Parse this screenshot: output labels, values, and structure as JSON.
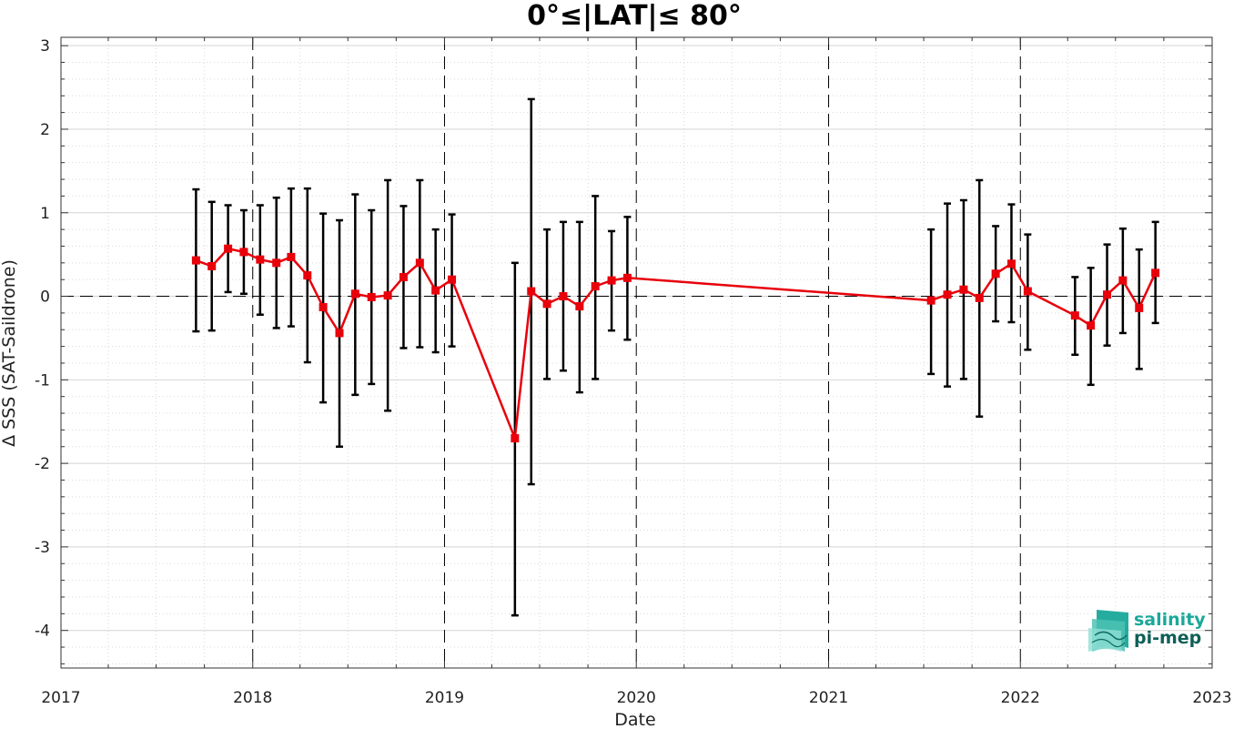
{
  "chart_data": {
    "type": "line",
    "title": "0°≤|LAT|≤ 80°",
    "xlabel": "Date",
    "ylabel": "Δ SSS (SAT-Saildrone)",
    "xlim": [
      "2017-01-01",
      "2023-01-01"
    ],
    "ylim": [
      -4.45,
      3.1
    ],
    "x_tick_labels": [
      "2017",
      "2018",
      "2019",
      "2020",
      "2021",
      "2022",
      "2023"
    ],
    "y_tick_labels": [
      "-4",
      "-3",
      "-2",
      "-1",
      "0",
      "1",
      "2",
      "3"
    ],
    "grid": true,
    "reference_line_y": 0,
    "year_boundary_lines": [
      "2018-01-01",
      "2019-01-01",
      "2020-01-01",
      "2021-01-01",
      "2022-01-01"
    ],
    "colors": {
      "line": "#e8000b",
      "errorbar": "#000000",
      "grid": "#d9d9d9"
    },
    "series": [
      {
        "x": [
          "2017-09-15",
          "2017-10-15",
          "2017-11-15",
          "2017-12-15",
          "2018-01-15",
          "2018-02-15",
          "2018-03-15",
          "2018-04-15",
          "2018-05-15",
          "2018-06-15",
          "2018-07-15",
          "2018-08-15",
          "2018-09-15",
          "2018-10-15",
          "2018-11-15",
          "2018-12-15",
          "2019-01-15",
          "2019-05-15",
          "2019-06-15",
          "2019-07-15",
          "2019-08-15",
          "2019-09-15",
          "2019-10-15",
          "2019-11-15",
          "2019-12-15",
          "2021-07-15",
          "2021-08-15",
          "2021-09-15",
          "2021-10-15",
          "2021-11-15",
          "2021-12-15",
          "2022-01-15",
          "2022-04-15",
          "2022-05-15",
          "2022-06-15",
          "2022-07-15",
          "2022-08-15",
          "2022-09-15"
        ],
        "y": [
          0.43,
          0.36,
          0.57,
          0.53,
          0.44,
          0.4,
          0.47,
          0.25,
          -0.13,
          -0.44,
          0.03,
          -0.01,
          0.01,
          0.23,
          0.4,
          0.07,
          0.2,
          -1.7,
          0.06,
          -0.09,
          0.0,
          -0.12,
          0.12,
          0.19,
          0.22,
          -0.05,
          0.02,
          0.08,
          -0.02,
          0.27,
          0.39,
          0.06,
          -0.23,
          -0.35,
          0.02,
          0.19,
          -0.14,
          0.28
        ],
        "err_low": [
          -0.42,
          -0.41,
          0.05,
          0.03,
          -0.22,
          -0.38,
          -0.36,
          -0.79,
          -1.27,
          -1.8,
          -1.18,
          -1.05,
          -1.37,
          -0.62,
          -0.61,
          -0.67,
          -0.6,
          -3.82,
          -2.25,
          -0.99,
          -0.89,
          -1.15,
          -0.99,
          -0.41,
          -0.52,
          -0.93,
          -1.08,
          -0.99,
          -1.44,
          -0.3,
          -0.31,
          -0.64,
          -0.7,
          -1.06,
          -0.59,
          -0.44,
          -0.87,
          -0.32
        ],
        "err_high": [
          1.28,
          1.13,
          1.09,
          1.03,
          1.09,
          1.18,
          1.29,
          1.29,
          0.99,
          0.91,
          1.22,
          1.03,
          1.39,
          1.08,
          1.39,
          0.8,
          0.98,
          0.4,
          2.36,
          0.8,
          0.89,
          0.89,
          1.2,
          0.78,
          0.95,
          0.8,
          1.11,
          1.15,
          1.39,
          0.84,
          1.1,
          0.74,
          0.23,
          0.34,
          0.62,
          0.81,
          0.56,
          0.89
        ]
      }
    ]
  },
  "logo": {
    "line1": "salinity",
    "line2": "pi-mep",
    "color": "#1aa89a"
  }
}
